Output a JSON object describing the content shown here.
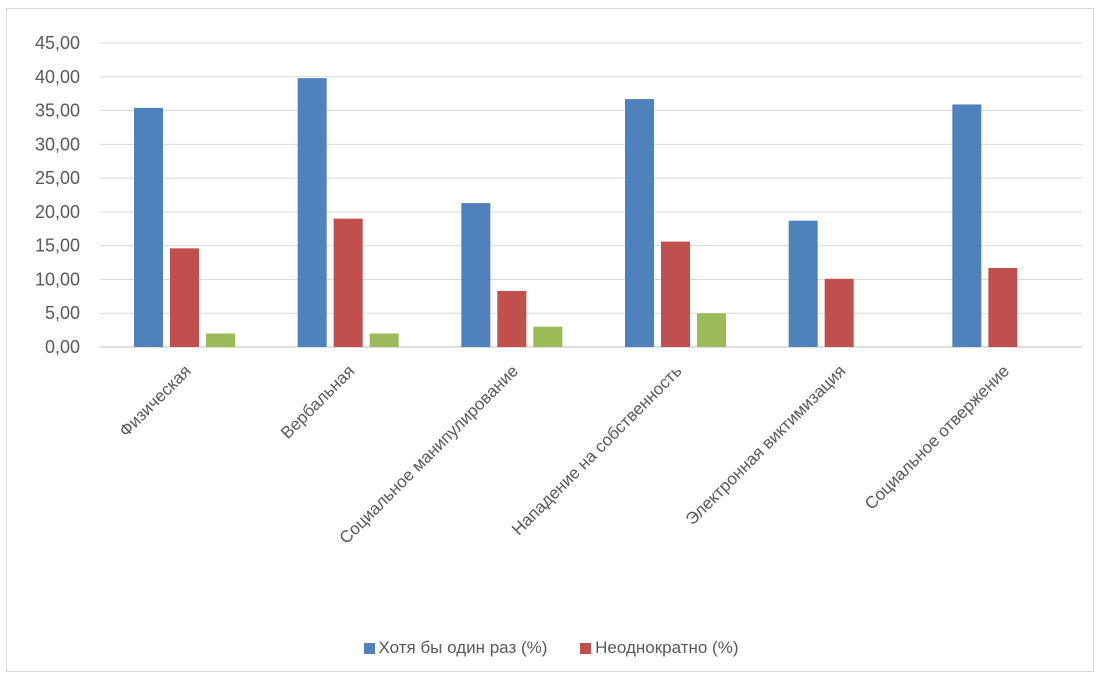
{
  "chart_data": {
    "type": "bar",
    "categories": [
      "Физическая",
      "Вербальная",
      "Социальное манипулирование",
      "Нападение на собственность",
      "Электронная виктимизация",
      "Социальное отвержение"
    ],
    "series": [
      {
        "name": "Хотя бы один раз (%)",
        "color": "#4F81BD",
        "values": [
          35.4,
          39.8,
          21.3,
          36.7,
          18.7,
          35.9
        ]
      },
      {
        "name": "Неоднократно (%)",
        "color": "#C0504D",
        "values": [
          14.6,
          19.0,
          8.3,
          15.6,
          10.1,
          11.7
        ]
      },
      {
        "color": "#9BBB59",
        "values": [
          2.0,
          2.0,
          3.0,
          5.0,
          null,
          null
        ]
      }
    ],
    "ylim": [
      0,
      45
    ],
    "yticks": [
      "0,00",
      "5,00",
      "10,00",
      "15,00",
      "20,00",
      "25,00",
      "30,00",
      "35,00",
      "40,00",
      "45,00"
    ],
    "ytick_values": [
      0,
      5,
      10,
      15,
      20,
      25,
      30,
      35,
      40,
      45
    ],
    "grid": true,
    "legend_position": "bottom",
    "legend_entries": [
      "Хотя бы один раз (%)",
      "Неоднократно (%)"
    ]
  }
}
